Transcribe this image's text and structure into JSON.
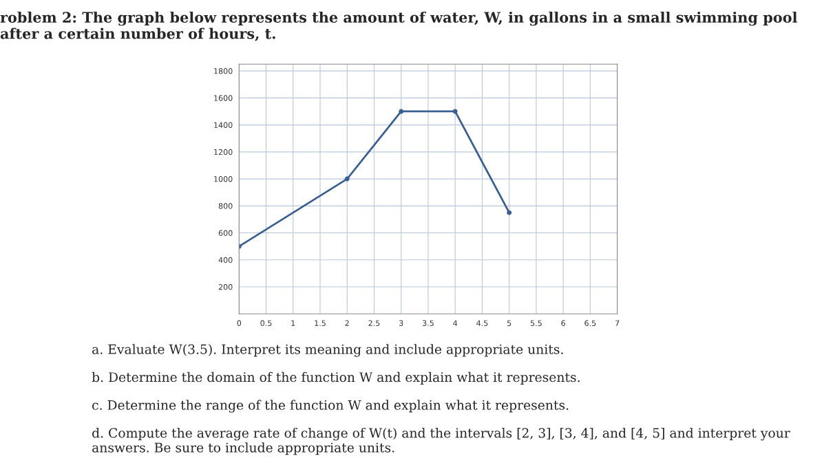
{
  "chart_data": {
    "type": "line",
    "title": "roblem 2: The graph below represents the amount of water, W, in gallons in a small swimming pool after a certain number of hours, t.",
    "x": [
      0,
      2,
      3,
      4,
      5
    ],
    "values": [
      500,
      1000,
      1500,
      1500,
      750
    ],
    "color": "#3b5f8f",
    "marker": "circle",
    "xlim": [
      0,
      7
    ],
    "ylim": [
      0,
      1850
    ],
    "xticks": [
      0,
      0.5,
      1,
      1.5,
      2,
      2.5,
      3,
      3.5,
      4,
      4.5,
      5,
      5.5,
      6,
      6.5,
      7
    ],
    "yticks": [
      200,
      400,
      600,
      800,
      1000,
      1200,
      1400,
      1600,
      1800
    ],
    "grid": true,
    "annotations": [
      "a. Evaluate W(3.5). Interpret its meaning and include appropriate units.",
      "b. Determine the domain of the function W and explain what it represents.",
      "c. Determine the range of the function W and explain what it represents.",
      "d. Compute the average rate of change of W(t) and the intervals [2, 3], [3, 4], and [4, 5] and interpret your answers. Be sure to include appropriate units."
    ]
  }
}
